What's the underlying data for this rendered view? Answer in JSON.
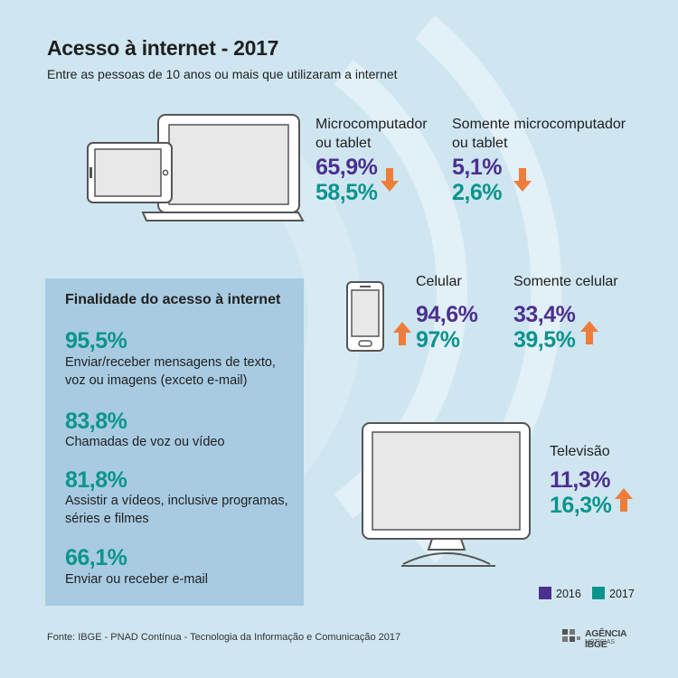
{
  "title": "Acesso à internet - 2017",
  "subtitle": "Entre as pessoas de 10 anos ou mais que utilizaram a internet",
  "colors": {
    "c2016": "#4c2f8f",
    "c2017": "#0a948c",
    "arrow": "#ee7d3a",
    "panel": "#a8cbe2",
    "background": "#cfe6f1"
  },
  "chart_data": {
    "type": "table",
    "series_years": [
      "2016",
      "2017"
    ],
    "devices": [
      {
        "label_lines": [
          "Microcomputador",
          "ou tablet"
        ],
        "v2016": "65,9%",
        "v2017": "58,5%",
        "trend": "down",
        "icon": "laptop-tablet-icon"
      },
      {
        "label_lines": [
          "Somente microcomputador",
          "ou tablet"
        ],
        "v2016": "5,1%",
        "v2017": "2,6%",
        "trend": "down"
      },
      {
        "label_lines": [
          "Celular"
        ],
        "v2016": "94,6%",
        "v2017": "97%",
        "trend": "up",
        "icon": "smartphone-icon"
      },
      {
        "label_lines": [
          "Somente celular"
        ],
        "v2016": "33,4%",
        "v2017": "39,5%",
        "trend": "up"
      },
      {
        "label_lines": [
          "Televisão"
        ],
        "v2016": "11,3%",
        "v2017": "16,3%",
        "trend": "up",
        "icon": "television-icon"
      }
    ],
    "finalidade": {
      "title": "Finalidade do acesso à internet",
      "items": [
        {
          "value": "95,5%",
          "desc_lines": [
            "Enviar/receber mensagens de texto,",
            "voz ou imagens (exceto e-mail)"
          ]
        },
        {
          "value": "83,8%",
          "desc_lines": [
            "Chamadas de voz ou vídeo"
          ]
        },
        {
          "value": "81,8%",
          "desc_lines": [
            "Assistir a vídeos, inclusive programas,",
            "séries e filmes"
          ]
        },
        {
          "value": "66,1%",
          "desc_lines": [
            "Enviar ou receber e-mail"
          ]
        }
      ]
    },
    "legend": [
      {
        "label": "2016",
        "color": "#4c2f8f"
      },
      {
        "label": "2017",
        "color": "#0a948c"
      }
    ]
  },
  "source": "Fonte: IBGE - PNAD Contínua - Tecnologia da Informação e Comunicação 2017",
  "logo": {
    "text_main": "AGÊNCIA IBGE",
    "text_sub": "NOTÍCIAS"
  }
}
